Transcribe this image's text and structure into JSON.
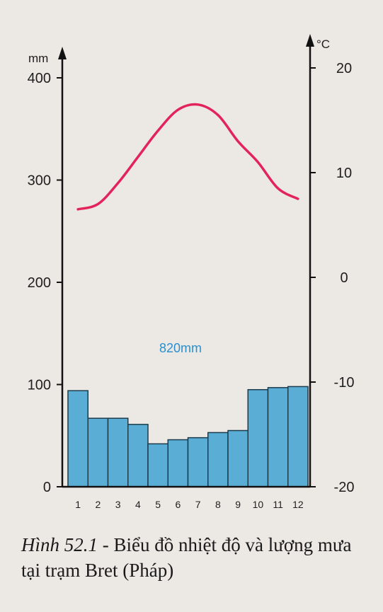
{
  "chart_data": {
    "type": "bar+line",
    "categories": [
      "1",
      "2",
      "3",
      "4",
      "5",
      "6",
      "7",
      "8",
      "9",
      "10",
      "11",
      "12"
    ],
    "series": [
      {
        "values": [
          94,
          67,
          67,
          61,
          42,
          46,
          48,
          53,
          55,
          95,
          97,
          98
        ],
        "kind": "bar",
        "axis": "left"
      },
      {
        "values": [
          6.5,
          7,
          9,
          11.5,
          14,
          16,
          16.5,
          15.5,
          13,
          11,
          8.5,
          7.5
        ],
        "kind": "line",
        "axis": "right"
      }
    ],
    "left_axis": {
      "unit": "mm",
      "ticks": [
        "0",
        "100",
        "200",
        "300",
        "400"
      ],
      "range": [
        0,
        400
      ]
    },
    "right_axis": {
      "unit": "°C",
      "ticks": [
        "-20",
        "-10",
        "0",
        "10",
        "20"
      ],
      "range": [
        -20,
        20
      ]
    },
    "annotation": "820mm",
    "colors": {
      "bar": "#5aaed6",
      "line": "#e3245c",
      "annotation": "#2a8fcf",
      "axis": "#111111"
    }
  },
  "caption": {
    "figure": "Hình 52.1",
    "text": " - Biểu đồ nhiệt độ và lượng mưa tại trạm Bret (Pháp)"
  }
}
